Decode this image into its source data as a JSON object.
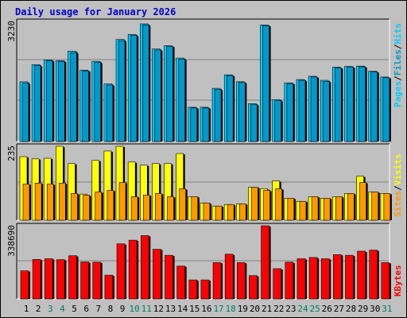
{
  "title": "Daily usage for January 2026",
  "colors": {
    "background": "#c0c0c0",
    "title": "#0000cc",
    "hits": "#00ccff",
    "files": "#0099cc",
    "pages": "#00ccff",
    "visits": "#ffff00",
    "sites": "#ff9900",
    "kbytes": "#ff0000",
    "weekday_label": "#000000",
    "weekend_label": "#00805c"
  },
  "chart_data": [
    {
      "type": "bar",
      "title": "Daily usage for January 2026",
      "panel": "hits-files-pages",
      "legend": [
        "Pages",
        "Files",
        "Hits"
      ],
      "legend_position": "right",
      "ymax_label": "3230",
      "ylim": [
        0,
        3230
      ],
      "categories": [
        "1",
        "2",
        "3",
        "4",
        "5",
        "6",
        "7",
        "8",
        "9",
        "10",
        "11",
        "12",
        "13",
        "14",
        "15",
        "16",
        "17",
        "18",
        "19",
        "20",
        "21",
        "22",
        "23",
        "24",
        "25",
        "26",
        "27",
        "28",
        "29",
        "30",
        "31"
      ],
      "weekend_days": [
        "3",
        "4",
        "10",
        "11",
        "17",
        "18",
        "24",
        "25",
        "31"
      ],
      "series": [
        {
          "name": "Hits",
          "values": [
            1640,
            2110,
            2240,
            2220,
            2480,
            1960,
            2200,
            1580,
            2800,
            2940,
            3230,
            2540,
            2630,
            2290,
            940,
            940,
            1460,
            1830,
            1640,
            1040,
            3200,
            1150,
            1610,
            1700,
            1790,
            1680,
            2040,
            2060,
            2070,
            1930,
            1770
          ]
        },
        {
          "name": "Files",
          "values": [
            1600,
            2080,
            2220,
            2200,
            2440,
            1940,
            2170,
            1550,
            2770,
            2910,
            3200,
            2510,
            2610,
            2260,
            920,
            920,
            1430,
            1810,
            1620,
            1010,
            3180,
            1120,
            1590,
            1680,
            1770,
            1650,
            2020,
            2040,
            2050,
            1910,
            1750
          ]
        }
      ]
    },
    {
      "type": "bar",
      "panel": "visits-sites",
      "legend": [
        "Sites",
        "Visits"
      ],
      "legend_position": "right",
      "ymax_label": "235",
      "ylim": [
        0,
        235
      ],
      "categories": [
        "1",
        "2",
        "3",
        "4",
        "5",
        "6",
        "7",
        "8",
        "9",
        "10",
        "11",
        "12",
        "13",
        "14",
        "15",
        "16",
        "17",
        "18",
        "19",
        "20",
        "21",
        "22",
        "23",
        "24",
        "25",
        "26",
        "27",
        "28",
        "29",
        "30",
        "31"
      ],
      "series": [
        {
          "name": "Visits",
          "values": [
            202,
            195,
            197,
            235,
            180,
            83,
            190,
            220,
            235,
            185,
            175,
            180,
            180,
            212,
            75,
            55,
            45,
            50,
            52,
            105,
            100,
            125,
            70,
            60,
            75,
            70,
            75,
            85,
            140,
            90,
            85
          ]
        },
        {
          "name": "Sites",
          "values": [
            115,
            118,
            115,
            118,
            85,
            80,
            90,
            95,
            120,
            75,
            80,
            85,
            75,
            100,
            75,
            55,
            45,
            50,
            52,
            105,
            95,
            100,
            70,
            60,
            75,
            70,
            75,
            85,
            120,
            90,
            85
          ]
        }
      ]
    },
    {
      "type": "bar",
      "panel": "kbytes",
      "legend": [
        "KBytes"
      ],
      "legend_position": "right",
      "ymax_label": "338690",
      "ylim": [
        0,
        338690
      ],
      "categories": [
        "1",
        "2",
        "3",
        "4",
        "5",
        "6",
        "7",
        "8",
        "9",
        "10",
        "11",
        "12",
        "13",
        "14",
        "15",
        "16",
        "17",
        "18",
        "19",
        "20",
        "21",
        "22",
        "23",
        "24",
        "25",
        "26",
        "27",
        "28",
        "29",
        "30",
        "31"
      ],
      "series": [
        {
          "name": "KBytes",
          "values": [
            130000,
            183000,
            186000,
            182000,
            200000,
            171000,
            170000,
            110000,
            255000,
            272000,
            293000,
            230000,
            202000,
            152000,
            88000,
            88000,
            168000,
            207000,
            168000,
            108000,
            338690,
            140000,
            170000,
            186000,
            192000,
            186000,
            205000,
            202000,
            221000,
            226000,
            168000
          ]
        }
      ]
    }
  ]
}
